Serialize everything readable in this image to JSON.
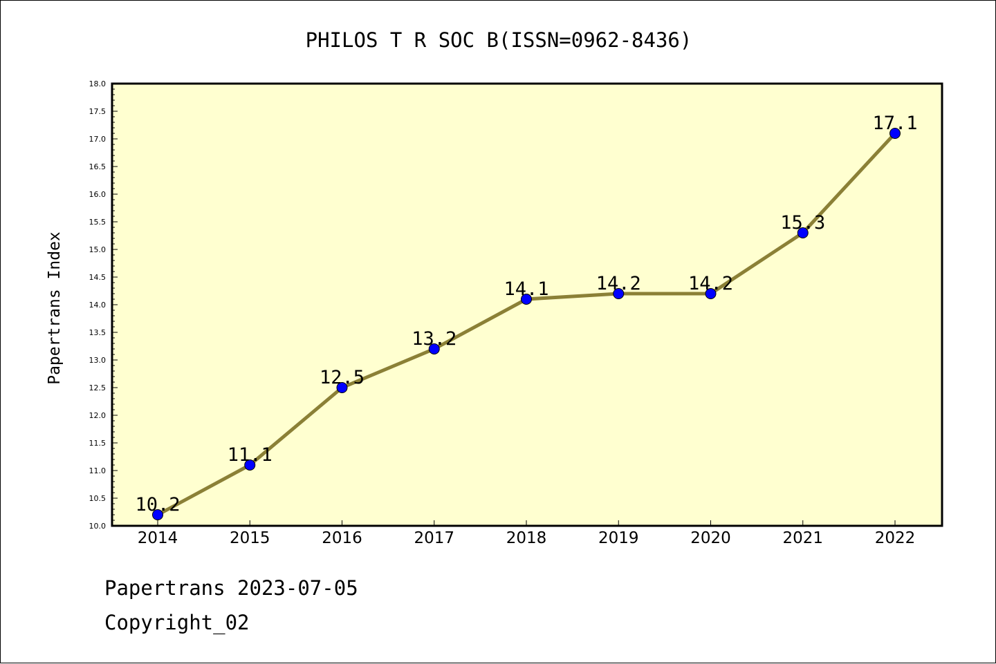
{
  "chart_data": {
    "type": "line",
    "title": "PHILOS T R SOC B(ISSN=0962-8436)",
    "xlabel": "",
    "ylabel": "Papertrans Index",
    "categories": [
      "2014",
      "2015",
      "2016",
      "2017",
      "2018",
      "2019",
      "2020",
      "2021",
      "2022"
    ],
    "series": [
      {
        "values": [
          10.2,
          11.1,
          12.5,
          13.2,
          14.1,
          14.2,
          14.2,
          15.3,
          17.1
        ]
      }
    ],
    "data_labels": [
      "10.2",
      "11.1",
      "12.5",
      "13.2",
      "14.1",
      "14.2",
      "14.2",
      "15.3",
      "17.1"
    ],
    "ylim": [
      10.0,
      18.0
    ],
    "yticks": [
      "10.0",
      "10.5",
      "11.0",
      "11.5",
      "12.0",
      "12.5",
      "13.0",
      "13.5",
      "14.0",
      "14.5",
      "15.0",
      "15.5",
      "16.0",
      "16.5",
      "17.0",
      "17.5",
      "18.0"
    ],
    "grid": false,
    "colors": {
      "plot_background": "#ffffd0",
      "line": "#8b8036",
      "marker": "#0000ff",
      "axis": "#000000"
    }
  },
  "footer": {
    "line1": "Papertrans 2023-07-05",
    "line2": "Copyright_02"
  }
}
